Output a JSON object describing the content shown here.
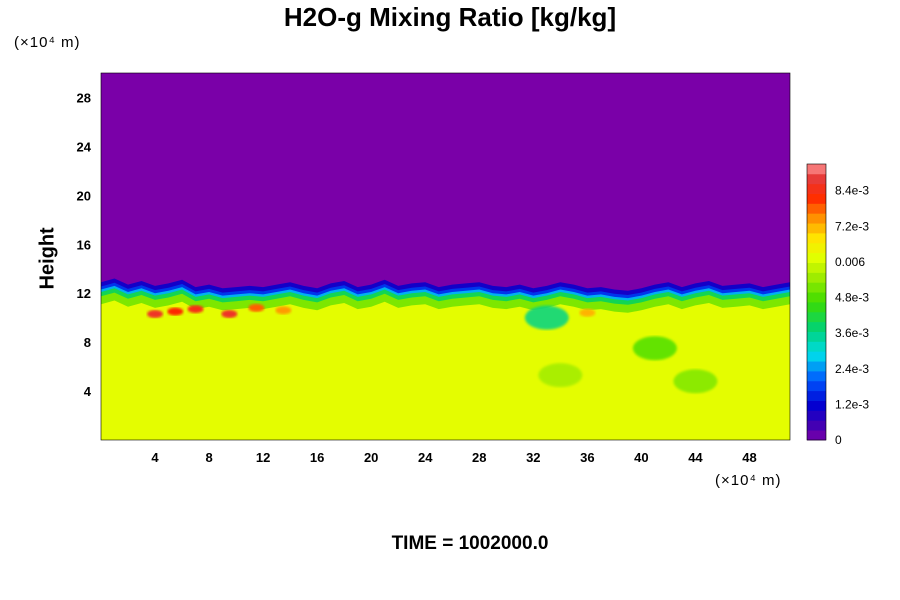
{
  "chart_data": {
    "type": "heatmap",
    "title": "H2O-g Mixing Ratio [kg/kg]",
    "ylabel": "Height",
    "xlabel": "",
    "x_unit_label": "(×10⁴ m)",
    "y_unit_label": "(×10⁴ m)",
    "xlim": [
      0,
      51
    ],
    "ylim": [
      0,
      30
    ],
    "x_ticks": [
      4,
      8,
      12,
      16,
      20,
      24,
      28,
      32,
      36,
      40,
      44,
      48
    ],
    "y_ticks": [
      4,
      8,
      12,
      16,
      20,
      24,
      28
    ],
    "colorbar": {
      "range": [
        0,
        0.0093
      ],
      "tick_values": [
        0,
        0.0012,
        0.0024,
        0.0036,
        0.0048,
        0.006,
        0.0072,
        0.0084
      ],
      "tick_labels": [
        "0",
        "1.2e-3",
        "2.4e-3",
        "3.6e-3",
        "4.8e-3",
        "0.006",
        "7.2e-3",
        "8.4e-3"
      ]
    },
    "regions": [
      {
        "name": "upper",
        "y_range": [
          11.8,
          30
        ],
        "value": 0
      },
      {
        "name": "lower",
        "y_range": [
          0,
          10.5
        ],
        "value": 0.0062
      }
    ],
    "interface_height": [
      12.0,
      12.3,
      11.8,
      12.1,
      11.7,
      11.9,
      12.2,
      11.6,
      11.8,
      11.5,
      11.6,
      11.7,
      11.6,
      11.8,
      12.0,
      11.7,
      11.5,
      11.9,
      12.1,
      11.6,
      11.8,
      12.2,
      11.7,
      11.9,
      12.0,
      11.6,
      11.8,
      11.9,
      12.0,
      11.7,
      11.6,
      11.8,
      11.5,
      11.7,
      12.0,
      11.8,
      11.5,
      11.6,
      11.4,
      11.3,
      11.5,
      11.8,
      12.0,
      11.6,
      11.9,
      12.1,
      11.7,
      11.8,
      11.9,
      11.6,
      11.8,
      12.0
    ],
    "moist_spots": [
      {
        "x": 4.0,
        "y": 10.3,
        "value": 0.0086
      },
      {
        "x": 5.5,
        "y": 10.5,
        "value": 0.0082
      },
      {
        "x": 7.0,
        "y": 10.7,
        "value": 0.0084
      },
      {
        "x": 9.5,
        "y": 10.3,
        "value": 0.0086
      },
      {
        "x": 11.5,
        "y": 10.8,
        "value": 0.0078
      },
      {
        "x": 13.5,
        "y": 10.6,
        "value": 0.0074
      },
      {
        "x": 36.0,
        "y": 10.4,
        "value": 0.0072
      }
    ],
    "dry_spots": [
      {
        "x": 34.0,
        "y": 5.3,
        "value": 0.0055
      },
      {
        "x": 44.0,
        "y": 4.8,
        "value": 0.0052
      },
      {
        "x": 41.0,
        "y": 7.5,
        "value": 0.0048
      },
      {
        "x": 33.0,
        "y": 10.0,
        "value": 0.0036
      }
    ],
    "footer": "TIME = 1002000.0"
  }
}
